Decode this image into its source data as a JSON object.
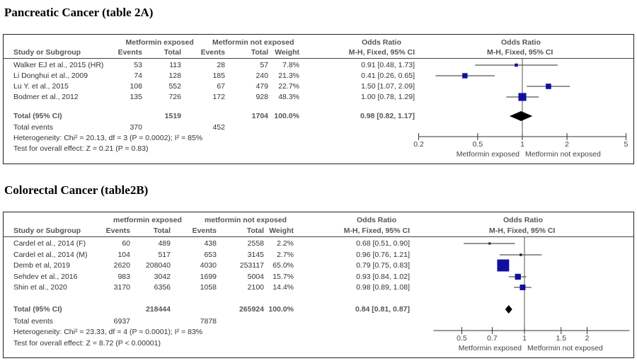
{
  "plots": [
    {
      "title": "Pancreatic Cancer (table 2A)",
      "group1": "Metformin exposed",
      "group2": "Metformin not exposed",
      "or_header": "Odds Ratio",
      "or_sub": "M-H, Fixed, 95% CI",
      "columns": [
        "Study or Subgroup",
        "Events",
        "Total",
        "Events",
        "Total",
        "Weight",
        "M-H, Fixed, 95% CI"
      ],
      "studies": [
        {
          "name": "Walker EJ et al., 2015 (HR)",
          "e1": "53",
          "t1": "113",
          "e2": "28",
          "t2": "57",
          "weight": "7.8%",
          "ci": "0.91 [0.48, 1.73]",
          "or": 0.91,
          "lo": 0.48,
          "hi": 1.73,
          "w": 7.8
        },
        {
          "name": "Li Donghui et al., 2009",
          "e1": "74",
          "t1": "128",
          "e2": "185",
          "t2": "240",
          "weight": "21.3%",
          "ci": "0.41 [0.26, 0.65]",
          "or": 0.41,
          "lo": 0.26,
          "hi": 0.65,
          "w": 21.3
        },
        {
          "name": "Lu Y. et al., 2015",
          "e1": "108",
          "t1": "552",
          "e2": "67",
          "t2": "479",
          "weight": "22.7%",
          "ci": "1.50 [1.07, 2.09]",
          "or": 1.5,
          "lo": 1.07,
          "hi": 2.09,
          "w": 22.7
        },
        {
          "name": "Bodmer et al., 2012",
          "e1": "135",
          "t1": "726",
          "e2": "172",
          "t2": "928",
          "weight": "48.3%",
          "ci": "1.00 [0.78, 1.29]",
          "or": 1.0,
          "lo": 0.78,
          "hi": 1.29,
          "w": 48.3
        }
      ],
      "total": {
        "label": "Total (95% CI)",
        "t1": "1519",
        "t2": "1704",
        "weight": "100.0%",
        "ci": "0.98 [0.82, 1.17]",
        "or": 0.98,
        "lo": 0.82,
        "hi": 1.17
      },
      "events": {
        "label": "Total events",
        "e1": "370",
        "e2": "452"
      },
      "heterogeneity": "Heterogeneity: Chi² = 20.13, df = 3 (P = 0.0002); I² = 85%",
      "overall": "Test for overall effect: Z = 0.21 (P = 0.83)",
      "ticks": [
        "0.2",
        "0.5",
        "1",
        "2",
        "5"
      ],
      "left_label": "Metformin exposed",
      "right_label": "Metformin not exposed"
    },
    {
      "title": "Colorectal Cancer (table2B)",
      "group1": "metformin exposed",
      "group2": "metformin not exposed",
      "or_header": "Odds Ratio",
      "or_sub": "M-H, Fixed, 95% CI",
      "columns": [
        "Study or Subgroup",
        "Events",
        "Total",
        "Events",
        "Total",
        "Weight",
        "M-H, Fixed, 95% CI"
      ],
      "studies": [
        {
          "name": "Cardel et al., 2014 (F)",
          "e1": "60",
          "t1": "489",
          "e2": "438",
          "t2": "2558",
          "weight": "2.2%",
          "ci": "0.68 [0.51, 0.90]",
          "or": 0.68,
          "lo": 0.51,
          "hi": 0.9,
          "w": 2.2
        },
        {
          "name": "Cardel et al., 2014 (M)",
          "e1": "104",
          "t1": "517",
          "e2": "653",
          "t2": "3145",
          "weight": "2.7%",
          "ci": "0.96 [0.76, 1.21]",
          "or": 0.96,
          "lo": 0.76,
          "hi": 1.21,
          "w": 2.7
        },
        {
          "name": "Demb et al, 2019",
          "e1": "2620",
          "t1": "208040",
          "e2": "4030",
          "t2": "253117",
          "weight": "65.0%",
          "ci": "0.79 [0.75, 0.83]",
          "or": 0.79,
          "lo": 0.75,
          "hi": 0.83,
          "w": 65.0
        },
        {
          "name": "Sehdev et al., 2016",
          "e1": "983",
          "t1": "3042",
          "e2": "1699",
          "t2": "5004",
          "weight": "15.7%",
          "ci": "0.93 [0.84, 1.02]",
          "or": 0.93,
          "lo": 0.84,
          "hi": 1.02,
          "w": 15.7
        },
        {
          "name": "Shin et al., 2020",
          "e1": "3170",
          "t1": "6356",
          "e2": "1058",
          "t2": "2100",
          "weight": "14.4%",
          "ci": "0.98 [0.89, 1.08]",
          "or": 0.98,
          "lo": 0.89,
          "hi": 1.08,
          "w": 14.4
        }
      ],
      "total": {
        "label": "Total (95% CI)",
        "t1": "218444",
        "t2": "265924",
        "weight": "100.0%",
        "ci": "0.84 [0.81, 0.87]",
        "or": 0.84,
        "lo": 0.81,
        "hi": 0.87
      },
      "events": {
        "label": "Total events",
        "e1": "6937",
        "e2": "7878"
      },
      "heterogeneity": "Heterogeneity: Chi² = 23.33, df = 4 (P = 0.0001); I² = 83%",
      "overall": "Test for overall effect: Z = 8.72 (P < 0.00001)",
      "ticks": [
        "0.5",
        "0.7",
        "1",
        "1.5",
        "2"
      ],
      "left_label": "Metformin exposed",
      "right_label": "Metformin not exposed"
    }
  ]
}
